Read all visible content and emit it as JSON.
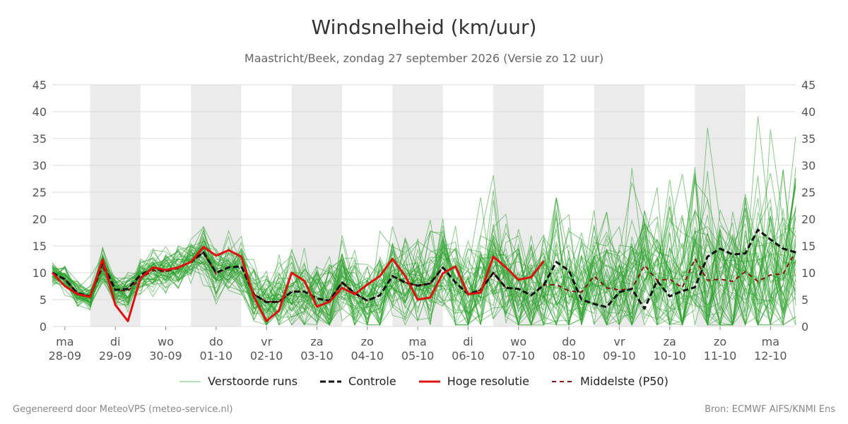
{
  "title": "Windsnelheid (km/uur)",
  "subtitle": "Maastricht/Beek, zondag 27 september 2026 (Versie zo 12 uur)",
  "footer_left": "Gegenereerd door MeteoVPS (meteo-service.nl)",
  "footer_right": "Bron: ECMWF AIFS/KNMI Ens",
  "colors": {
    "ensemble": "#2ca02c",
    "control": "#111111",
    "hires": "#e01010",
    "median": "#8b1010",
    "shade": "#ebebeb",
    "grid": "#dddddd"
  },
  "legend": [
    {
      "key": "ensemble",
      "label": "Verstoorde runs"
    },
    {
      "key": "control",
      "label": "Controle"
    },
    {
      "key": "hires",
      "label": "Hoge resolutie"
    },
    {
      "key": "median",
      "label": "Middelste (P50)"
    }
  ],
  "chart_data": {
    "type": "line",
    "ylim": [
      0,
      45
    ],
    "yticks": [
      0,
      5,
      10,
      15,
      20,
      25,
      30,
      35,
      40,
      45
    ],
    "xlim": [
      -0.25,
      14.5
    ],
    "shaded_days": [
      1,
      3,
      5,
      7,
      9,
      11,
      13
    ],
    "x_ticks": [
      {
        "day": "ma",
        "date": "28-09"
      },
      {
        "day": "di",
        "date": "29-09"
      },
      {
        "day": "wo",
        "date": "30-09"
      },
      {
        "day": "do",
        "date": "01-10"
      },
      {
        "day": "vr",
        "date": "02-10"
      },
      {
        "day": "za",
        "date": "03-10"
      },
      {
        "day": "zo",
        "date": "04-10"
      },
      {
        "day": "ma",
        "date": "05-10"
      },
      {
        "day": "di",
        "date": "06-10"
      },
      {
        "day": "wo",
        "date": "07-10"
      },
      {
        "day": "do",
        "date": "08-10"
      },
      {
        "day": "vr",
        "date": "09-10"
      },
      {
        "day": "za",
        "date": "10-10"
      },
      {
        "day": "zo",
        "date": "11-10"
      },
      {
        "day": "ma",
        "date": "12-10"
      }
    ],
    "hires": {
      "name": "Hoge resolutie",
      "x": [
        -0.25,
        0.0,
        0.25,
        0.5,
        0.75,
        1.0,
        1.25,
        1.5,
        1.75,
        2.0,
        2.25,
        2.5,
        2.75,
        3.0,
        3.25,
        3.5,
        3.75,
        4.0,
        4.25,
        4.5,
        4.75,
        5.0,
        5.25,
        5.5,
        5.75,
        6.0,
        6.25,
        6.5,
        6.75,
        7.0,
        7.25,
        7.5,
        7.75,
        8.0,
        8.25,
        8.5,
        8.75,
        9.0,
        9.25,
        9.5
      ],
      "values": [
        10,
        7.5,
        6.0,
        5.5,
        12.5,
        4.0,
        1.0,
        9.0,
        11.0,
        10.5,
        11.0,
        12.0,
        14.8,
        13.2,
        14.2,
        13.0,
        5.5,
        1.0,
        3.0,
        10.0,
        8.5,
        3.7,
        4.6,
        7.2,
        6.0,
        7.8,
        9.4,
        12.6,
        9.4,
        5.0,
        5.4,
        9.9,
        11.2,
        6.0,
        6.3,
        13.0,
        11.0,
        8.7,
        9.2,
        12.2
      ]
    },
    "control": {
      "name": "Controle",
      "x": [
        -0.25,
        0.0,
        0.25,
        0.5,
        0.75,
        1.0,
        1.25,
        1.5,
        1.75,
        2.0,
        2.25,
        2.5,
        2.75,
        3.0,
        3.25,
        3.5,
        3.75,
        4.0,
        4.25,
        4.5,
        4.75,
        5.0,
        5.25,
        5.5,
        5.75,
        6.0,
        6.25,
        6.5,
        6.75,
        7.0,
        7.25,
        7.5,
        7.75,
        8.0,
        8.25,
        8.5,
        8.75,
        9.0,
        9.25,
        9.5,
        9.75,
        10.0,
        10.25,
        10.5,
        10.75,
        11.0,
        11.25,
        11.5,
        11.75,
        12.0,
        12.25,
        12.5,
        12.75,
        13.0,
        13.25,
        13.5,
        13.75,
        14.0,
        14.25,
        14.5
      ],
      "values": [
        10,
        8.8,
        6.2,
        5.6,
        11.8,
        6.8,
        7.0,
        9.6,
        10.8,
        10.4,
        11.0,
        12.0,
        13.8,
        10.0,
        11.0,
        11.2,
        6.0,
        4.5,
        4.6,
        6.5,
        6.5,
        5.2,
        4.8,
        8.2,
        6.2,
        4.8,
        5.8,
        9.4,
        8.2,
        7.6,
        8.0,
        11.0,
        8.2,
        6.0,
        6.8,
        10.0,
        7.2,
        7.0,
        5.8,
        7.7,
        12.0,
        10.4,
        5.0,
        4.2,
        3.6,
        6.4,
        7.0,
        3.3,
        8.5,
        5.6,
        6.6,
        7.3,
        13.0,
        14.5,
        13.4,
        13.6,
        18.0,
        16.2,
        14.5,
        13.8
      ]
    },
    "median": {
      "name": "Middelste (P50)",
      "x": [
        -0.25,
        0.0,
        0.25,
        0.5,
        0.75,
        1.0,
        1.25,
        1.5,
        1.75,
        2.0,
        2.25,
        2.5,
        2.75,
        3.0,
        3.25,
        3.5,
        3.75,
        4.0,
        4.25,
        4.5,
        4.75,
        5.0,
        5.25,
        5.5,
        5.75,
        6.0,
        6.25,
        6.5,
        6.75,
        7.0,
        7.25,
        7.5,
        7.75,
        8.0,
        8.25,
        8.5,
        8.75,
        9.0,
        9.25,
        9.5,
        9.75,
        10.0,
        10.25,
        10.5,
        10.75,
        11.0,
        11.25,
        11.5,
        11.75,
        12.0,
        12.25,
        12.5,
        12.75,
        13.0,
        13.25,
        13.5,
        13.75,
        14.0,
        14.25,
        14.5
      ],
      "values": [
        10,
        8.8,
        6.2,
        5.6,
        11.0,
        6.8,
        6.6,
        9.0,
        10.4,
        10.2,
        10.8,
        12.0,
        13.8,
        9.8,
        11.0,
        11.2,
        6.0,
        4.6,
        4.6,
        6.4,
        6.5,
        5.2,
        4.8,
        8.2,
        6.2,
        4.8,
        5.8,
        9.4,
        8.2,
        7.6,
        8.0,
        11.0,
        8.2,
        6.0,
        6.8,
        10.0,
        7.2,
        7.0,
        5.8,
        7.7,
        7.8,
        6.6,
        6.4,
        9.4,
        7.2,
        6.8,
        7.0,
        11.4,
        8.6,
        8.8,
        7.2,
        12.6,
        8.6,
        8.8,
        8.4,
        10.2,
        8.4,
        9.6,
        9.8,
        14.0
      ]
    },
    "ensemble": {
      "name": "Verstoorde runs",
      "count": 50,
      "x_step_days": 0.25,
      "note_range": [
        0,
        41
      ]
    }
  }
}
